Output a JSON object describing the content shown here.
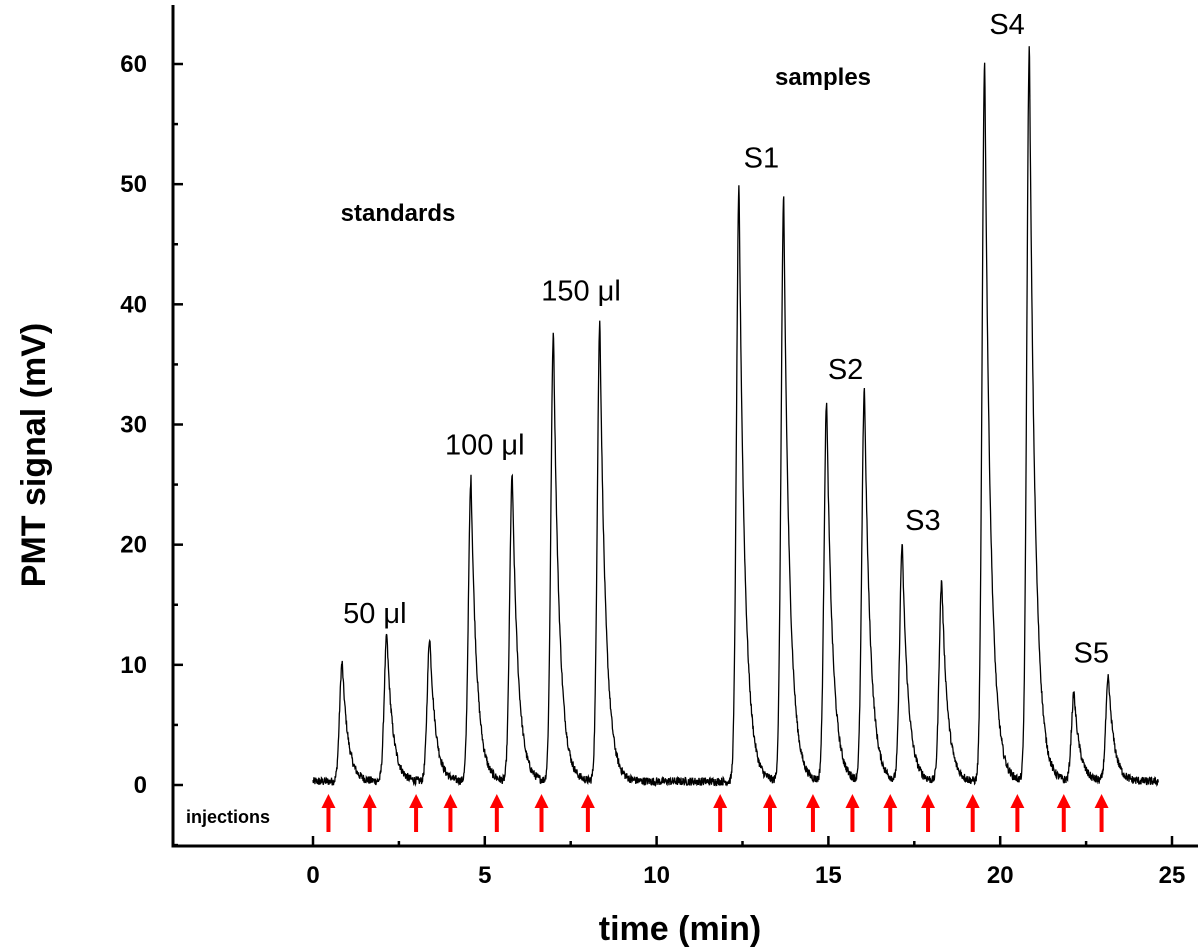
{
  "chart_data": {
    "type": "line",
    "title": "",
    "xlabel": "time (min)",
    "ylabel": "PMT signal (mV)",
    "xlim": [
      -4,
      25.5
    ],
    "ylim": [
      -5,
      65
    ],
    "x_ticks": [
      "0",
      "5",
      "10",
      "15",
      "20",
      "25"
    ],
    "x_tick_values": [
      0,
      5,
      10,
      15,
      20,
      25
    ],
    "y_ticks": [
      "0",
      "10",
      "20",
      "30",
      "40",
      "50",
      "60"
    ],
    "y_tick_values": [
      0,
      10,
      20,
      30,
      40,
      50,
      60
    ],
    "trace": {
      "start_min": 0,
      "end_min": 24.6,
      "baseline_mV": 0.3,
      "noise_mV": 0.35
    },
    "peaks": [
      {
        "time": 0.85,
        "height": 9.9
      },
      {
        "time": 2.15,
        "height": 12.2
      },
      {
        "time": 3.4,
        "height": 12.0
      },
      {
        "time": 4.6,
        "height": 25.2
      },
      {
        "time": 5.8,
        "height": 25.5
      },
      {
        "time": 7.0,
        "height": 37.5
      },
      {
        "time": 8.35,
        "height": 38.3
      },
      {
        "time": 12.4,
        "height": 49.4
      },
      {
        "time": 13.7,
        "height": 48.4
      },
      {
        "time": 14.95,
        "height": 31.7
      },
      {
        "time": 16.05,
        "height": 32.8
      },
      {
        "time": 17.15,
        "height": 19.7
      },
      {
        "time": 18.3,
        "height": 16.7
      },
      {
        "time": 19.55,
        "height": 60.1
      },
      {
        "time": 20.85,
        "height": 61.2
      },
      {
        "time": 22.15,
        "height": 7.3
      },
      {
        "time": 23.15,
        "height": 8.6
      }
    ],
    "injections": [
      0.45,
      1.65,
      3.0,
      4.0,
      5.35,
      6.65,
      8.0,
      11.85,
      13.3,
      14.55,
      15.7,
      16.8,
      17.9,
      19.2,
      20.5,
      21.85,
      22.95
    ],
    "annotations": {
      "standards": "standards",
      "samples": "samples",
      "injections": "injections",
      "peak_labels": [
        {
          "text": "50 μl",
          "time": 1.8,
          "value": 13.5
        },
        {
          "text": "100 μl",
          "time": 5.0,
          "value": 27.5
        },
        {
          "text": "150 μl",
          "time": 7.8,
          "value": 40.3
        },
        {
          "text": "S1",
          "time": 13.05,
          "value": 51.4
        },
        {
          "text": "S2",
          "time": 15.5,
          "value": 33.8
        },
        {
          "text": "S3",
          "time": 17.75,
          "value": 21.2
        },
        {
          "text": "S4",
          "time": 20.2,
          "value": 62.5
        },
        {
          "text": "S5",
          "time": 22.65,
          "value": 10.2
        }
      ]
    },
    "colors": {
      "trace": "#000000",
      "injection_arrow": "#ff0000",
      "background": "#ffffff"
    },
    "grid": false,
    "legend": "none"
  }
}
